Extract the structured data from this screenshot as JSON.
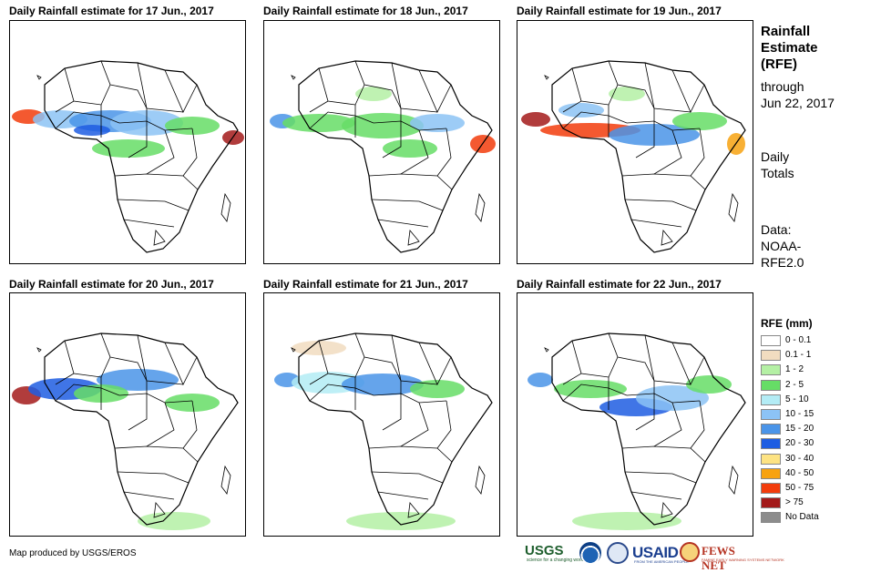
{
  "panels": [
    {
      "title": "Daily Rainfall estimate for 17 Jun., 2017"
    },
    {
      "title": "Daily Rainfall estimate for 18 Jun., 2017"
    },
    {
      "title": "Daily Rainfall estimate for 19 Jun., 2017"
    },
    {
      "title": "Daily Rainfall estimate for 20 Jun., 2017"
    },
    {
      "title": "Daily Rainfall estimate for 21 Jun., 2017"
    },
    {
      "title": "Daily Rainfall estimate for 22 Jun., 2017"
    }
  ],
  "sidebar": {
    "title_line1": "Rainfall",
    "title_line2": "Estimate",
    "title_line3": "(RFE)",
    "through_label": "through",
    "through_date": "Jun 22, 2017",
    "totals_line1": "Daily",
    "totals_line2": "Totals",
    "data_line1": "Data:",
    "data_line2": "NOAA-",
    "data_line3": "RFE2.0"
  },
  "legend": {
    "title": "RFE (mm)",
    "items": [
      {
        "label": "0 - 0.1",
        "color": "#ffffff"
      },
      {
        "label": "0.1 - 1",
        "color": "#f1dcc0"
      },
      {
        "label": "1 - 2",
        "color": "#b4f0a4"
      },
      {
        "label": "2 - 5",
        "color": "#66dd66"
      },
      {
        "label": "5 - 10",
        "color": "#b3ecf5"
      },
      {
        "label": "10 - 15",
        "color": "#8cc3f5"
      },
      {
        "label": "15 - 20",
        "color": "#4a94e8"
      },
      {
        "label": "20 - 30",
        "color": "#1e5de2"
      },
      {
        "label": "30 - 40",
        "color": "#fde383"
      },
      {
        "label": "40 - 50",
        "color": "#f7a211"
      },
      {
        "label": "50 - 75",
        "color": "#f23c0c"
      },
      {
        "label": "> 75",
        "color": "#a31a1a"
      },
      {
        "label": "No Data",
        "color": "#8c8c8c"
      }
    ]
  },
  "credit": "Map produced by USGS/EROS",
  "logos": {
    "usgs": "USGS",
    "usgs_tagline": "science for a changing world",
    "usaid": "USAID",
    "usaid_tagline": "FROM THE AMERICAN PEOPLE",
    "fews": "FEWS NET",
    "fews_tagline": "FAMINE EARLY WARNING SYSTEMS NETWORK"
  }
}
